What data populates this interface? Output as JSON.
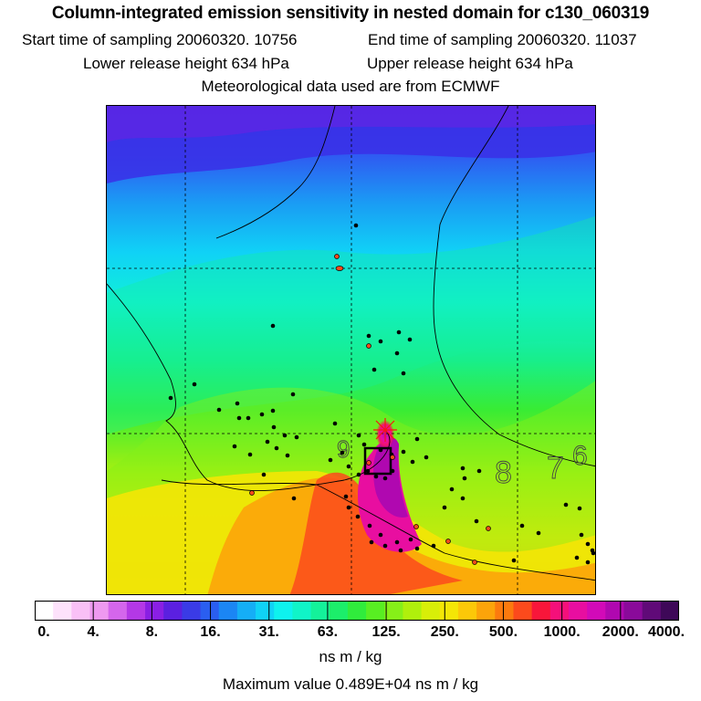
{
  "header": {
    "title": "Column-integrated emission sensitivity in nested domain for c130_060319",
    "start_label": "Start time of sampling 20060320. 10756",
    "end_label": "End time of sampling 20060320. 11037",
    "lower_label": "Lower release height  634 hPa",
    "upper_label": "Upper release height  634 hPa",
    "met_label": "Meteorological data used are from ECMWF"
  },
  "map": {
    "contour_labels": [
      "9",
      "8",
      "7",
      "6"
    ],
    "grid_style": "dashed"
  },
  "colorbar": {
    "tick_labels": [
      "0.",
      "4.",
      "8.",
      "16.",
      "31.",
      "63.",
      "125.",
      "250.",
      "500.",
      "1000.",
      "2000.",
      "4000."
    ],
    "colors": [
      "#ffffff",
      "#fde2fb",
      "#f9c0f6",
      "#ee99f0",
      "#d466ec",
      "#b438e6",
      "#8a1fe4",
      "#5b20e0",
      "#3a3be6",
      "#2a5ef0",
      "#1b86f4",
      "#15aef6",
      "#10d2f6",
      "#0ef2ee",
      "#10f4c8",
      "#14f19a",
      "#1cee6a",
      "#30ec3c",
      "#58ee22",
      "#86f018",
      "#b0f00c",
      "#d8ee08",
      "#f4e606",
      "#fcc808",
      "#fca40a",
      "#fc7a0e",
      "#fc4a1c",
      "#f8163a",
      "#f4107a",
      "#e80ea0",
      "#d20ab8",
      "#b008b0",
      "#8a0a9a",
      "#600a78",
      "#3e0858"
    ],
    "units": "ns m / kg",
    "max_value": "Maximum value  0.489E+04 ns m / kg"
  }
}
